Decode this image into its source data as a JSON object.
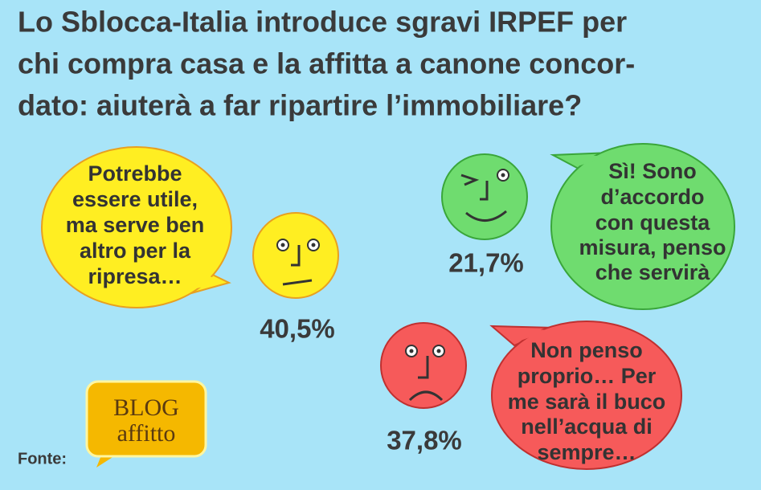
{
  "title": [
    "Lo Sblocca-Italia introduce sgravi IRPEF per",
    "chi compra casa e la affitta a canone concor-",
    "dato: aiuterà a far ripartire l’immobiliare?"
  ],
  "answers": [
    {
      "text": [
        "Potrebbe",
        "essere utile,",
        "ma serve ben",
        "altro per la",
        "ripresa…"
      ],
      "percent": "40,5%"
    },
    {
      "text": [
        "Sì! Sono",
        "d’accordo",
        "con questa",
        "misura, penso",
        "che servirà"
      ],
      "percent": "21,7%"
    },
    {
      "text": [
        "Non penso",
        "proprio… Per",
        "me sarà il buco",
        "nell’acqua di",
        "sempre…"
      ],
      "percent": "37,8%"
    }
  ],
  "source_label": "Fonte:",
  "logo": [
    "BLOG",
    "affitto"
  ]
}
